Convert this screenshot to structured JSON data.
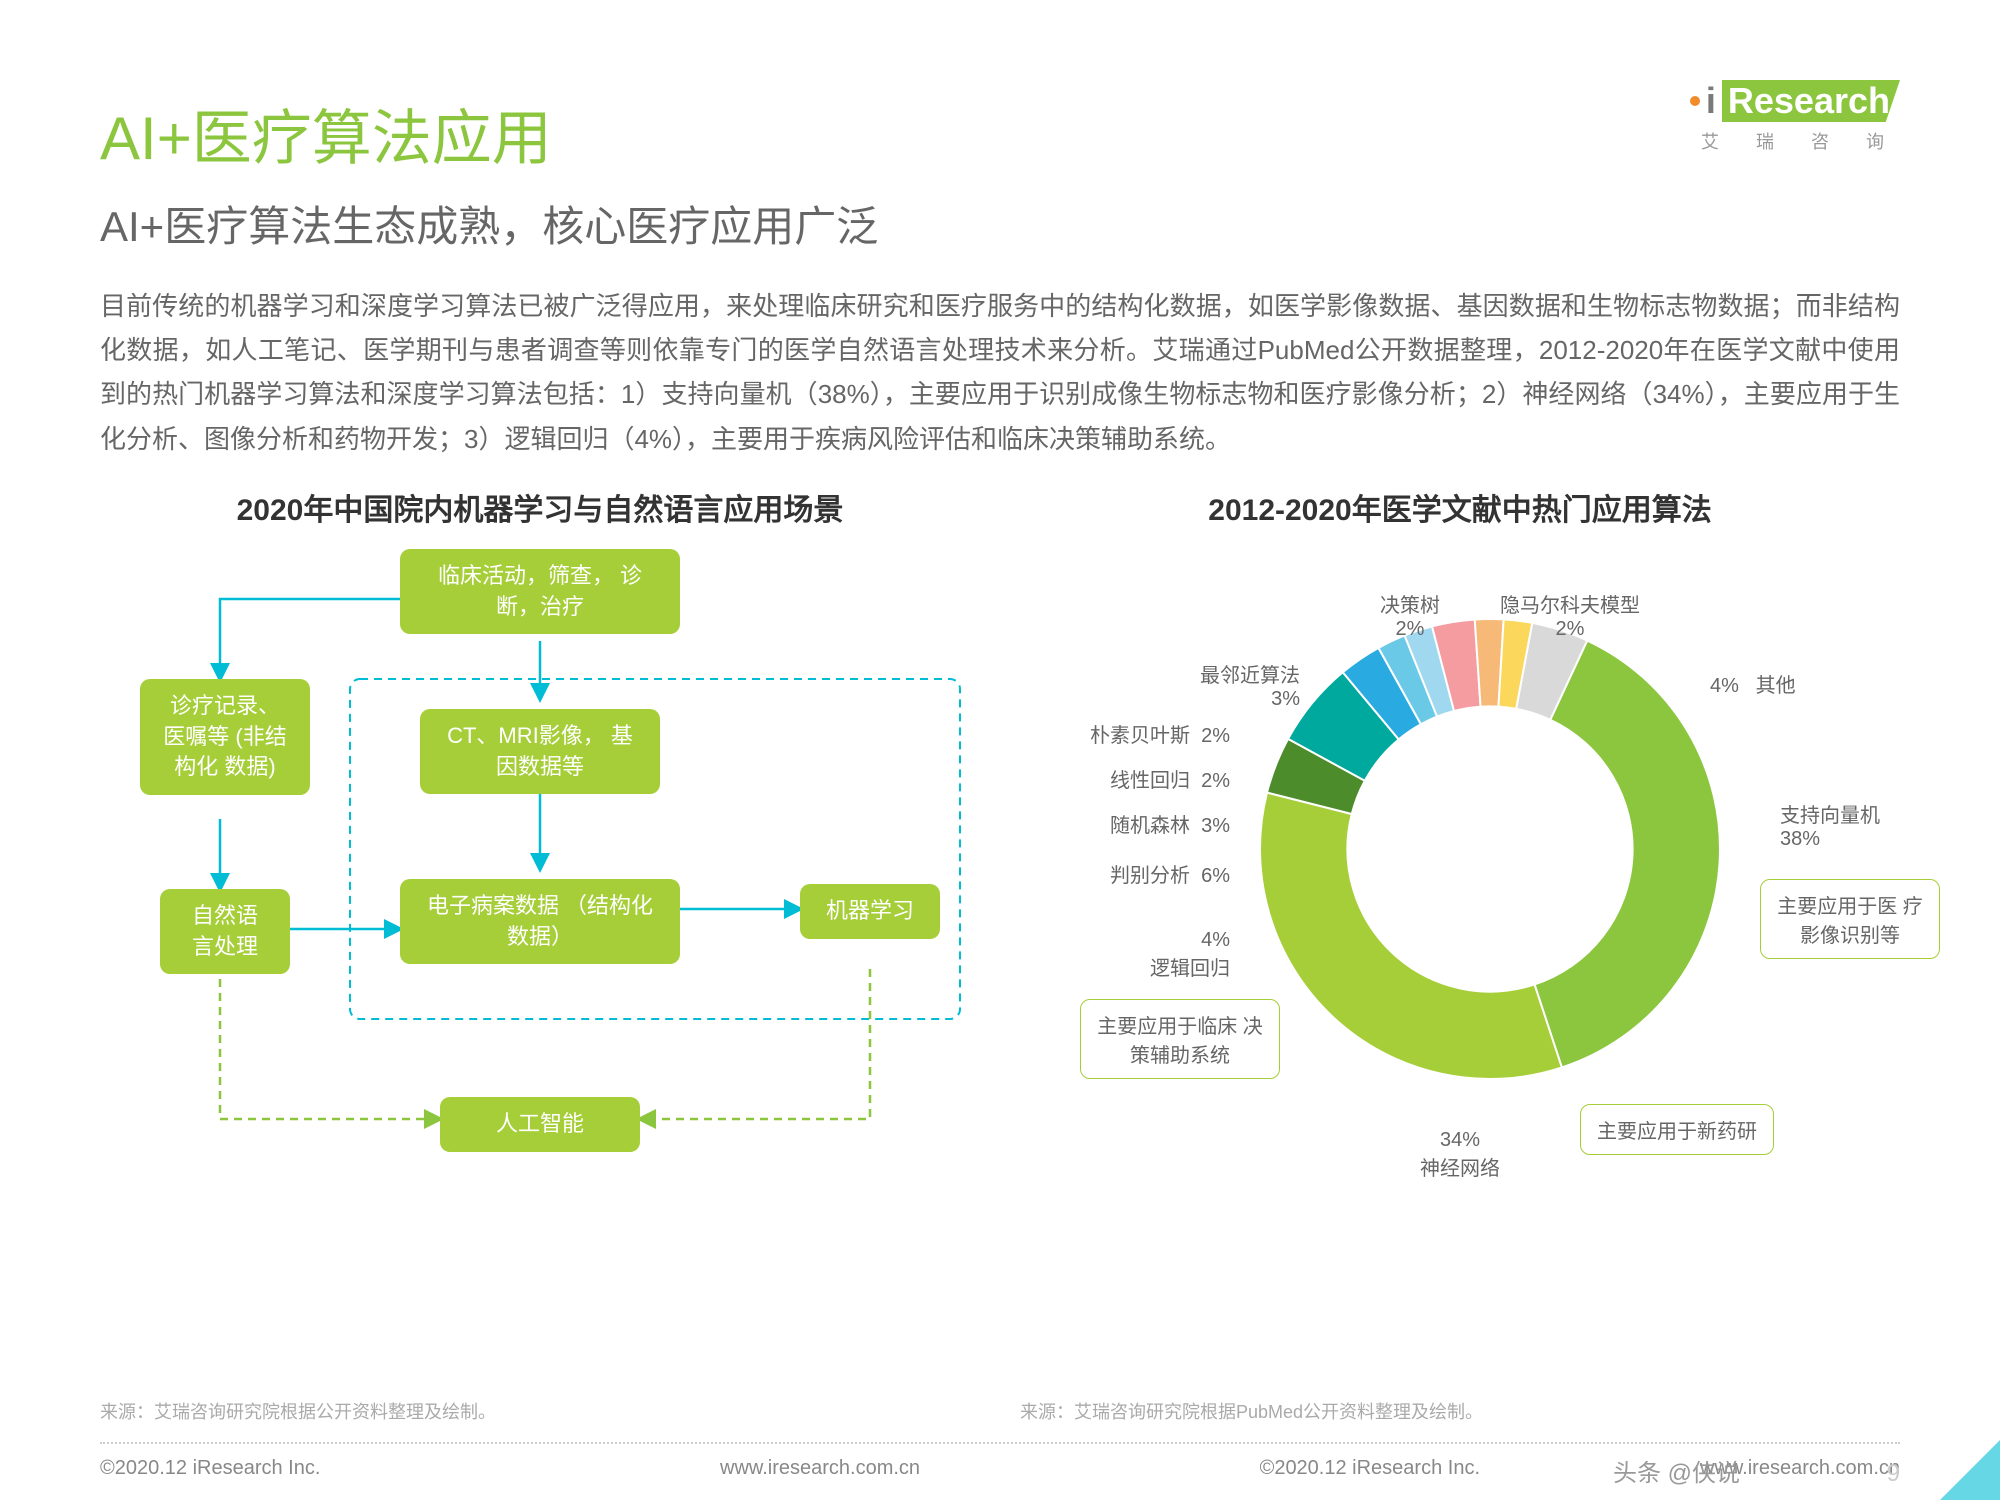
{
  "logo": {
    "brand_prefix": "i",
    "brand": "Research",
    "sub": "艾 瑞 咨 询"
  },
  "title": "AI+医疗算法应用",
  "subtitle": "AI+医疗算法生态成熟，核心医疗应用广泛",
  "body": "目前传统的机器学习和深度学习算法已被广泛得应用，来处理临床研究和医疗服务中的结构化数据，如医学影像数据、基因数据和生物标志物数据；而非结构化数据，如人工笔记、医学期刊与患者调查等则依靠专门的医学自然语言处理技术来分析。艾瑞通过PubMed公开数据整理，2012-2020年在医学文献中使用到的热门机器学习算法和深度学习算法包括：1）支持向量机（38%），主要应用于识别成像生物标志物和医疗影像分析；2）神经网络（34%），主要应用于生化分析、图像分析和药物开发；3）逻辑回归（4%），主要用于疾病风险评估和临床决策辅助系统。",
  "left": {
    "section_title": "2020年中国院内机器学习与自然语言应用场景",
    "nodes": {
      "clinical": "临床活动，筛查，\n诊断，治疗",
      "records": "诊疗记录、\n医嘱等\n(非结构化\n数据)",
      "imaging": "CT、MRI影像，\n基因数据等",
      "nlp": "自然语\n言处理",
      "ehr": "电子病案数据\n（结构化数据）",
      "ml": "机器学习",
      "ai": "人工智能"
    },
    "source": "来源：艾瑞咨询研究院根据公开资料整理及绘制。"
  },
  "right": {
    "section_title": "2012-2020年医学文献中热门应用算法",
    "donut": {
      "type": "donut",
      "inner_radius_pct": 62,
      "background_color": "#ffffff",
      "slices": [
        {
          "label": "支持向量机",
          "value": 38,
          "color": "#8cc63f",
          "pct": "38%"
        },
        {
          "label": "神经网络",
          "value": 34,
          "color": "#a6ce39",
          "pct": "34%"
        },
        {
          "label": "逻辑回归",
          "value": 4,
          "color": "#4c8c2b",
          "pct": "4%"
        },
        {
          "label": "判别分析",
          "value": 6,
          "color": "#00a99d",
          "pct": "6%"
        },
        {
          "label": "随机森林",
          "value": 3,
          "color": "#29abe2",
          "pct": "3%"
        },
        {
          "label": "线性回归",
          "value": 2,
          "color": "#6bc9e8",
          "pct": "2%"
        },
        {
          "label": "朴素贝叶斯",
          "value": 2,
          "color": "#a0d8ef",
          "pct": "2%"
        },
        {
          "label": "最邻近算法",
          "value": 3,
          "color": "#f59ca0",
          "pct": "3%"
        },
        {
          "label": "决策树",
          "value": 2,
          "color": "#f7b977",
          "pct": "2%"
        },
        {
          "label": "隐马尔科夫模型",
          "value": 2,
          "color": "#fbd75b",
          "pct": "2%"
        },
        {
          "label": "其他",
          "value": 4,
          "color": "#d9d9d9",
          "pct": "4%"
        }
      ],
      "callouts": {
        "svm": "主要应用于医\n疗影像识别等",
        "nn": "主要应用于新药研",
        "logit": "主要应用于临床\n决策辅助系统"
      }
    },
    "source": "来源：艾瑞咨询研究院根据PubMed公开资料整理及绘制。"
  },
  "footer": {
    "copyright_left": "©2020.12 iResearch Inc.",
    "site": "www.iresearch.com.cn",
    "watermark": "头条 @侠说",
    "page": "9"
  },
  "colors": {
    "accent_green": "#8cc63f",
    "light_green": "#a6ce39",
    "dark_green": "#4c8c2b",
    "cyan": "#00bcd4",
    "text": "#666666"
  }
}
